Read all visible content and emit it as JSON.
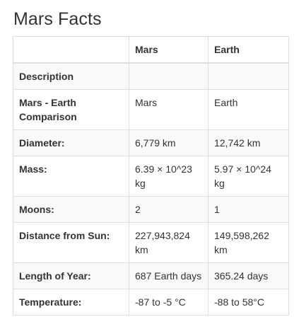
{
  "page": {
    "title": "Mars Facts"
  },
  "table": {
    "headers": [
      "",
      "Mars",
      "Earth"
    ],
    "rows": [
      {
        "label": "Description",
        "mars": "",
        "earth": ""
      },
      {
        "label": "Mars - Earth Comparison",
        "mars": "Mars",
        "earth": "Earth"
      },
      {
        "label": "Diameter:",
        "mars": "6,779 km",
        "earth": "12,742 km"
      },
      {
        "label": "Mass:",
        "mars": "6.39 × 10^23 kg",
        "earth": "5.97 × 10^24 kg"
      },
      {
        "label": "Moons:",
        "mars": "2",
        "earth": "1"
      },
      {
        "label": "Distance from Sun:",
        "mars": "227,943,824 km",
        "earth": "149,598,262 km"
      },
      {
        "label": "Length of Year:",
        "mars": "687 Earth days",
        "earth": "365.24 days"
      },
      {
        "label": "Temperature:",
        "mars": "-87 to -5 °C",
        "earth": "-88 to 58°C"
      }
    ]
  }
}
